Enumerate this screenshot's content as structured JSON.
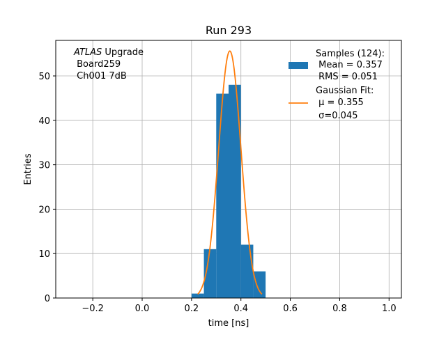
{
  "chart_data": {
    "type": "bar",
    "title": "Run 293",
    "xlabel": "time [ns]",
    "ylabel": "Entries",
    "xlim": [
      -0.35,
      1.05
    ],
    "ylim": [
      0,
      58
    ],
    "grid": true,
    "x_ticks": [
      -0.2,
      0.0,
      0.2,
      0.4,
      0.6,
      0.8,
      1.0
    ],
    "x_tick_labels": [
      "−0.2",
      "0.0",
      "0.2",
      "0.4",
      "0.6",
      "0.8",
      "1.0"
    ],
    "y_ticks": [
      0,
      10,
      20,
      30,
      40,
      50
    ],
    "y_tick_labels": [
      "0",
      "10",
      "20",
      "30",
      "40",
      "50"
    ],
    "histogram": {
      "bin_edges": [
        0.2,
        0.25,
        0.3,
        0.35,
        0.4,
        0.45,
        0.5
      ],
      "counts": [
        1,
        11,
        46,
        48,
        12,
        6
      ],
      "color": "#1f77b4"
    },
    "gaussian_fit": {
      "mu": 0.355,
      "sigma": 0.045,
      "amplitude": 55.6,
      "x_range": [
        0.225,
        0.485
      ],
      "color": "#ff7f0e"
    },
    "annotation": {
      "italic_part": "ATLAS",
      "rest_of_line1": " Upgrade",
      "line2": " Board259",
      "line3": " Ch001 7dB"
    },
    "legend": {
      "placement": "top-right",
      "entries": [
        {
          "lines": [
            "Samples (124):",
            " Mean = 0.357",
            " RMS = 0.051"
          ],
          "marker": "patch",
          "color": "#1f77b4"
        },
        {
          "lines": [
            "Gaussian Fit:",
            " μ = 0.355",
            " σ=0.045"
          ],
          "marker": "line",
          "color": "#ff7f0e"
        }
      ]
    }
  }
}
